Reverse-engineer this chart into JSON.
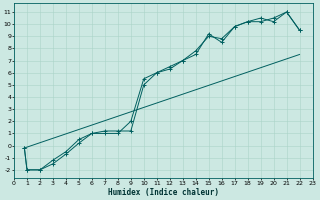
{
  "xlabel": "Humidex (Indice chaleur)",
  "bg_color": "#cce8e2",
  "grid_color": "#aad4c8",
  "line_color": "#005f5f",
  "xlim": [
    0,
    23
  ],
  "ylim": [
    -2.7,
    11.7
  ],
  "xticks": [
    0,
    1,
    2,
    3,
    4,
    5,
    6,
    7,
    8,
    9,
    10,
    11,
    12,
    13,
    14,
    15,
    16,
    17,
    18,
    19,
    20,
    21,
    22,
    23
  ],
  "yticks": [
    -2,
    -1,
    0,
    1,
    2,
    3,
    4,
    5,
    6,
    7,
    8,
    9,
    10,
    11
  ],
  "line1_x": [
    0.8,
    1,
    2,
    3,
    4,
    5,
    6,
    7,
    8,
    9,
    10,
    11,
    12,
    13,
    14,
    15,
    16,
    17,
    18,
    19,
    20,
    21,
    22
  ],
  "line1_y": [
    -0.2,
    -2,
    -2,
    -1.2,
    -0.5,
    0.5,
    1.0,
    1.0,
    1.0,
    2.0,
    5.5,
    6.0,
    6.5,
    7.0,
    7.5,
    9.2,
    8.5,
    9.8,
    10.2,
    10.2,
    10.5,
    11.0,
    9.5
  ],
  "line2_x": [
    0.8,
    1,
    2,
    3,
    4,
    5,
    6,
    7,
    8,
    9,
    10,
    11,
    12,
    13,
    14,
    15,
    16,
    17,
    18,
    19,
    20,
    21,
    22
  ],
  "line2_y": [
    -0.2,
    -2,
    -2,
    -1.5,
    -0.7,
    0.2,
    1.0,
    1.2,
    1.2,
    1.2,
    5.0,
    6.0,
    6.3,
    7.0,
    7.8,
    9.0,
    8.8,
    9.8,
    10.2,
    10.5,
    10.2,
    11.0,
    9.5
  ],
  "line3_x": [
    0.8,
    22
  ],
  "line3_y": [
    -0.2,
    7.5
  ],
  "xlabel_fontsize": 5.5,
  "tick_fontsize": 4.5
}
